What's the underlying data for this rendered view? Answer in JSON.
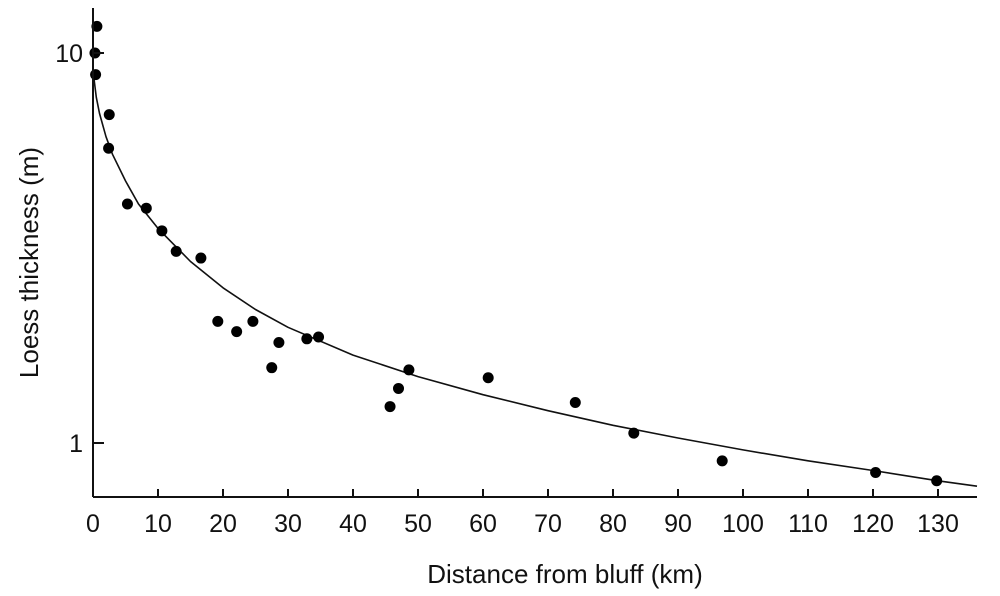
{
  "chart_data": {
    "type": "scatter",
    "title": "",
    "xlabel": "Distance from bluff (km)",
    "ylabel": "Loess thickness (m)",
    "xlim": [
      0,
      136
    ],
    "ylim": [
      0.77,
      12
    ],
    "yscale": "log",
    "grid": false,
    "legend": "none",
    "x_ticks": [
      0,
      10,
      20,
      30,
      40,
      50,
      60,
      70,
      80,
      90,
      100,
      110,
      120,
      130
    ],
    "x_tick_labels": [
      "0",
      "10",
      "20",
      "30",
      "40",
      "50",
      "60",
      "70",
      "80",
      "90",
      "100",
      "110",
      "120",
      "130"
    ],
    "y_ticks": [
      1,
      10
    ],
    "y_tick_labels": [
      "1",
      "10"
    ],
    "points": {
      "x": [
        0.6,
        0.3,
        0.4,
        2.5,
        2.4,
        5.3,
        8.2,
        10.6,
        12.8,
        16.6,
        19.2,
        22.1,
        24.6,
        27.5,
        28.6,
        32.9,
        34.7,
        45.7,
        47.0,
        48.6,
        60.8,
        74.2,
        83.2,
        96.8,
        120.4,
        129.8
      ],
      "y": [
        11.7,
        10.0,
        8.8,
        6.95,
        5.7,
        4.1,
        4.0,
        3.5,
        3.1,
        2.98,
        2.05,
        1.93,
        2.05,
        1.56,
        1.81,
        1.85,
        1.87,
        1.24,
        1.38,
        1.54,
        1.47,
        1.27,
        1.06,
        0.9,
        0.84,
        0.8
      ]
    },
    "fit_curve": {
      "x": [
        0,
        0.5,
        1,
        2,
        3,
        5,
        7,
        10,
        15,
        20,
        25,
        30,
        40,
        50,
        60,
        70,
        80,
        90,
        100,
        110,
        120,
        130,
        136
      ],
      "y": [
        9.0,
        7.7,
        7.0,
        6.1,
        5.5,
        4.7,
        4.1,
        3.55,
        2.92,
        2.5,
        2.2,
        1.98,
        1.68,
        1.48,
        1.33,
        1.21,
        1.11,
        1.03,
        0.96,
        0.9,
        0.85,
        0.8,
        0.775
      ]
    }
  }
}
